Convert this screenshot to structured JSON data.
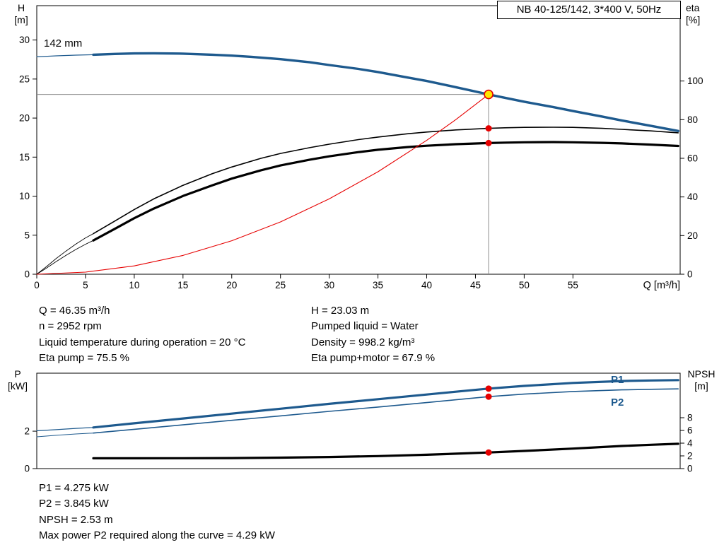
{
  "colors": {
    "axis": "#000000",
    "ref_gray": "#8c8c8c",
    "blue": "#1e5a8e",
    "black": "#000000",
    "red": "#e60000",
    "yellow_op": "#ffe600"
  },
  "title_box": {
    "text": "NB 40-125/142, 3*400 V, 50Hz"
  },
  "chart_data": [
    {
      "type": "line",
      "x_axis": {
        "label": "Q [m³/h]",
        "min": 0,
        "max": 66,
        "ticks": [
          0,
          5,
          10,
          15,
          20,
          25,
          30,
          35,
          40,
          45,
          50,
          55
        ]
      },
      "y_left": {
        "name": "H",
        "unit": "[m]",
        "min": 0,
        "max": 34.4,
        "ticks": [
          0,
          5,
          10,
          15,
          20,
          25,
          30
        ]
      },
      "y_right": {
        "name": "eta",
        "unit": "[%]",
        "min": 0,
        "max": 139,
        "ticks": [
          0,
          20,
          40,
          60,
          80,
          100
        ]
      },
      "impeller_label": "142 mm",
      "crosshair": {
        "q": 46.35,
        "h": 23.03
      },
      "series": [
        {
          "name": "head-curve-thin",
          "axis": "left",
          "color": "blue",
          "width": 1.2,
          "points": [
            [
              0,
              27.85
            ],
            [
              2,
              27.97
            ],
            [
              4,
              28.06
            ],
            [
              5.8,
              28.12
            ]
          ]
        },
        {
          "name": "head-curve",
          "axis": "left",
          "color": "blue",
          "width": 3.4,
          "points": [
            [
              5.8,
              28.12
            ],
            [
              8,
              28.22
            ],
            [
              10,
              28.28
            ],
            [
              12,
              28.3
            ],
            [
              15,
              28.25
            ],
            [
              18,
              28.12
            ],
            [
              20,
              28.0
            ],
            [
              22,
              27.85
            ],
            [
              25,
              27.55
            ],
            [
              28,
              27.15
            ],
            [
              30,
              26.8
            ],
            [
              33,
              26.3
            ],
            [
              35,
              25.9
            ],
            [
              38,
              25.2
            ],
            [
              40,
              24.75
            ],
            [
              43,
              23.95
            ],
            [
              46.35,
              23.03
            ],
            [
              48,
              22.6
            ],
            [
              50,
              22.1
            ],
            [
              53,
              21.4
            ],
            [
              55,
              20.9
            ],
            [
              58,
              20.2
            ],
            [
              60,
              19.7
            ],
            [
              63,
              19.0
            ],
            [
              65.8,
              18.35
            ]
          ]
        },
        {
          "name": "eta-pump-thin",
          "axis": "right",
          "color": "black",
          "width": 0.9,
          "points": [
            [
              0,
              0
            ],
            [
              1,
              4
            ],
            [
              2,
              8.2
            ],
            [
              3,
              12
            ],
            [
              4,
              15.6
            ],
            [
              5,
              18.8
            ],
            [
              5.8,
              21
            ]
          ]
        },
        {
          "name": "eta-pump",
          "axis": "right",
          "color": "black",
          "width": 1.6,
          "points": [
            [
              5.8,
              21
            ],
            [
              8,
              27.5
            ],
            [
              10,
              33.5
            ],
            [
              12,
              39
            ],
            [
              15,
              46
            ],
            [
              18,
              52
            ],
            [
              20,
              55.5
            ],
            [
              23,
              60
            ],
            [
              25,
              62.5
            ],
            [
              28,
              65.5
            ],
            [
              30,
              67.3
            ],
            [
              33,
              69.7
            ],
            [
              35,
              71
            ],
            [
              38,
              72.7
            ],
            [
              40,
              73.6
            ],
            [
              43,
              74.7
            ],
            [
              46.35,
              75.5
            ],
            [
              48,
              75.8
            ],
            [
              50,
              76
            ],
            [
              53,
              76.1
            ],
            [
              55,
              76
            ],
            [
              58,
              75.5
            ],
            [
              60,
              75
            ],
            [
              63,
              74.2
            ],
            [
              65.8,
              73.2
            ]
          ]
        },
        {
          "name": "eta-pump-motor-thin",
          "axis": "right",
          "color": "black",
          "width": 0.9,
          "points": [
            [
              0,
              0
            ],
            [
              1,
              3.2
            ],
            [
              2,
              6.6
            ],
            [
              3,
              9.8
            ],
            [
              4,
              12.8
            ],
            [
              5,
              15.5
            ],
            [
              5.8,
              17.5
            ]
          ]
        },
        {
          "name": "eta-pump-motor",
          "axis": "right",
          "color": "black",
          "width": 3.2,
          "points": [
            [
              5.8,
              17.5
            ],
            [
              8,
              23.5
            ],
            [
              10,
              29
            ],
            [
              12,
              34
            ],
            [
              15,
              40.5
            ],
            [
              18,
              46
            ],
            [
              20,
              49.5
            ],
            [
              23,
              53.8
            ],
            [
              25,
              56.3
            ],
            [
              28,
              59.3
            ],
            [
              30,
              61
            ],
            [
              33,
              63.2
            ],
            [
              35,
              64.4
            ],
            [
              38,
              65.8
            ],
            [
              40,
              66.5
            ],
            [
              43,
              67.3
            ],
            [
              46.35,
              67.9
            ],
            [
              48,
              68.1
            ],
            [
              50,
              68.3
            ],
            [
              53,
              68.4
            ],
            [
              55,
              68.3
            ],
            [
              58,
              68.0
            ],
            [
              60,
              67.7
            ],
            [
              63,
              67.1
            ],
            [
              65.8,
              66.4
            ]
          ]
        },
        {
          "name": "system-curve",
          "axis": "left",
          "color": "red",
          "width": 1.1,
          "points": [
            [
              0,
              0
            ],
            [
              5,
              0.27
            ],
            [
              10,
              1.07
            ],
            [
              15,
              2.41
            ],
            [
              20,
              4.29
            ],
            [
              25,
              6.7
            ],
            [
              30,
              9.65
            ],
            [
              35,
              13.13
            ],
            [
              40,
              17.15
            ],
            [
              43,
              19.82
            ],
            [
              46.35,
              23.03
            ]
          ]
        }
      ],
      "markers": [
        {
          "name": "duty-point",
          "q": 46.35,
          "v": 23.03,
          "axis": "left",
          "r": 6,
          "fill": "yellow_op",
          "stroke": "red"
        },
        {
          "name": "eta-pump-point",
          "q": 46.35,
          "v": 75.5,
          "axis": "right",
          "r": 4.5,
          "fill": "red"
        },
        {
          "name": "eta-pump-motor-point",
          "q": 46.35,
          "v": 67.9,
          "axis": "right",
          "r": 4.5,
          "fill": "red"
        }
      ]
    },
    {
      "type": "line",
      "x_axis": {
        "label": "",
        "min": 0,
        "max": 66,
        "ticks": []
      },
      "y_left": {
        "name": "P",
        "unit": "[kW]",
        "min": 0,
        "max": 5.1,
        "ticks": [
          0,
          2
        ]
      },
      "y_right": {
        "name": "NPSH",
        "unit": "[m]",
        "min": 0,
        "max": 15,
        "ticks": [
          0,
          2,
          4,
          6,
          8
        ]
      },
      "series": [
        {
          "name": "p1-thin",
          "axis": "left",
          "color": "blue",
          "width": 1.2,
          "points": [
            [
              0,
              2.02
            ],
            [
              2,
              2.08
            ],
            [
              4,
              2.15
            ],
            [
              5.8,
              2.2
            ]
          ]
        },
        {
          "name": "p1",
          "axis": "left",
          "color": "blue",
          "width": 3.2,
          "points": [
            [
              5.8,
              2.2
            ],
            [
              10,
              2.42
            ],
            [
              15,
              2.68
            ],
            [
              20,
              2.94
            ],
            [
              25,
              3.2
            ],
            [
              30,
              3.46
            ],
            [
              35,
              3.71
            ],
            [
              40,
              3.96
            ],
            [
              43,
              4.11
            ],
            [
              46.35,
              4.275
            ],
            [
              50,
              4.42
            ],
            [
              55,
              4.58
            ],
            [
              60,
              4.68
            ],
            [
              63,
              4.71
            ],
            [
              65.8,
              4.73
            ]
          ]
        },
        {
          "name": "p2-thin",
          "axis": "left",
          "color": "blue",
          "width": 1.0,
          "points": [
            [
              0,
              1.7
            ],
            [
              2,
              1.78
            ],
            [
              4,
              1.85
            ],
            [
              5.8,
              1.9
            ]
          ]
        },
        {
          "name": "p2",
          "axis": "left",
          "color": "blue",
          "width": 1.6,
          "points": [
            [
              5.8,
              1.9
            ],
            [
              10,
              2.1
            ],
            [
              15,
              2.34
            ],
            [
              20,
              2.58
            ],
            [
              25,
              2.82
            ],
            [
              30,
              3.06
            ],
            [
              35,
              3.29
            ],
            [
              40,
              3.53
            ],
            [
              43,
              3.68
            ],
            [
              46.35,
              3.845
            ],
            [
              50,
              3.98
            ],
            [
              55,
              4.12
            ],
            [
              60,
              4.21
            ],
            [
              63,
              4.24
            ],
            [
              65.8,
              4.26
            ]
          ]
        },
        {
          "name": "npsh",
          "axis": "right",
          "color": "black",
          "width": 3.2,
          "points": [
            [
              5.8,
              1.62
            ],
            [
              10,
              1.62
            ],
            [
              15,
              1.63
            ],
            [
              20,
              1.66
            ],
            [
              25,
              1.72
            ],
            [
              30,
              1.82
            ],
            [
              35,
              1.97
            ],
            [
              40,
              2.18
            ],
            [
              43,
              2.34
            ],
            [
              46.35,
              2.53
            ],
            [
              50,
              2.78
            ],
            [
              55,
              3.15
            ],
            [
              60,
              3.55
            ],
            [
              63,
              3.75
            ],
            [
              65.8,
              3.9
            ]
          ]
        }
      ],
      "markers": [
        {
          "name": "p1-point",
          "q": 46.35,
          "v": 4.275,
          "axis": "left",
          "r": 4.5,
          "fill": "red"
        },
        {
          "name": "p2-point",
          "q": 46.35,
          "v": 3.845,
          "axis": "left",
          "r": 4.5,
          "fill": "red"
        },
        {
          "name": "npsh-point",
          "q": 46.35,
          "v": 2.53,
          "axis": "right",
          "r": 4.5,
          "fill": "red"
        }
      ],
      "series_labels": [
        {
          "text": "P1"
        },
        {
          "text": "P2"
        }
      ]
    }
  ],
  "info_block": {
    "left": [
      "Q = 46.35 m³/h",
      "n = 2952 rpm",
      "Liquid temperature during operation = 20 °C",
      "Eta pump = 75.5 %"
    ],
    "right": [
      "H = 23.03 m",
      "Pumped liquid = Water",
      "Density = 998.2 kg/m³",
      "Eta pump+motor = 67.9 %"
    ]
  },
  "results_block": [
    "P1 = 4.275 kW",
    "P2 = 3.845 kW",
    "NPSH = 2.53 m",
    "Max power P2 required along the curve = 4.29 kW"
  ]
}
